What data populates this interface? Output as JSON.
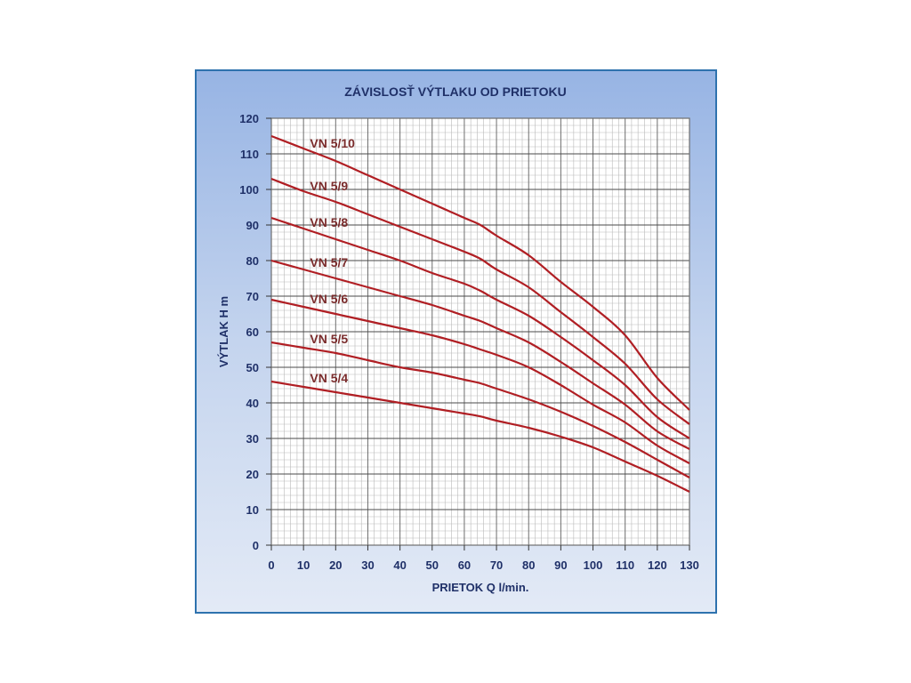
{
  "chart_data": {
    "type": "line",
    "title": "ZÁVISLOSŤ  VÝTLAKU  OD  PRIETOKU",
    "xlabel": "PRIETOK  Q  l/min.",
    "ylabel": "VÝTLAK  H  m",
    "xlim": [
      0,
      130
    ],
    "ylim": [
      0,
      120
    ],
    "x_ticks": [
      "0",
      "10",
      "20",
      "30",
      "40",
      "50",
      "60",
      "70",
      "80",
      "90",
      "100",
      "110",
      "120",
      "130"
    ],
    "y_ticks": [
      "0",
      "10",
      "20",
      "30",
      "40",
      "50",
      "60",
      "70",
      "80",
      "90",
      "100",
      "110",
      "120"
    ],
    "grid": true,
    "line_color": "#b01e23",
    "frame_color": "#2e72ae",
    "x": [
      0,
      10,
      20,
      30,
      40,
      50,
      60,
      65,
      70,
      80,
      90,
      100,
      110,
      120,
      130
    ],
    "series": [
      {
        "name": "VN 5/10",
        "values": [
          115,
          111.5,
          108,
          104,
          100,
          96,
          92,
          90,
          87,
          81.5,
          74,
          67,
          59,
          47,
          38
        ]
      },
      {
        "name": "VN 5/9",
        "values": [
          103,
          99.5,
          96.5,
          93,
          89.5,
          86,
          82.5,
          80.5,
          77.5,
          72.5,
          65.5,
          58.5,
          51,
          41,
          34
        ]
      },
      {
        "name": "VN 5/8",
        "values": [
          92,
          89,
          86,
          83,
          80,
          76.5,
          73.5,
          71.5,
          69,
          64.5,
          58.5,
          52,
          45,
          36,
          30
        ]
      },
      {
        "name": "VN 5/7",
        "values": [
          80,
          77.5,
          75,
          72.5,
          70,
          67.5,
          64.5,
          63,
          61,
          57,
          51.5,
          45.5,
          39.5,
          32,
          27
        ]
      },
      {
        "name": "VN 5/6",
        "values": [
          69,
          67,
          65,
          63,
          61,
          59,
          56.5,
          55,
          53.5,
          50,
          45,
          39.5,
          34.5,
          28,
          23
        ]
      },
      {
        "name": "VN 5/5",
        "values": [
          57,
          55.5,
          54,
          52,
          50,
          48.5,
          46.5,
          45.5,
          44,
          41,
          37.5,
          33.5,
          29,
          24,
          19
        ]
      },
      {
        "name": "VN 5/4",
        "values": [
          46,
          44.5,
          43,
          41.5,
          40,
          38.5,
          37,
          36.2,
          35,
          33,
          30.5,
          27.5,
          23.5,
          19.5,
          15
        ]
      }
    ],
    "label_x": 12
  }
}
